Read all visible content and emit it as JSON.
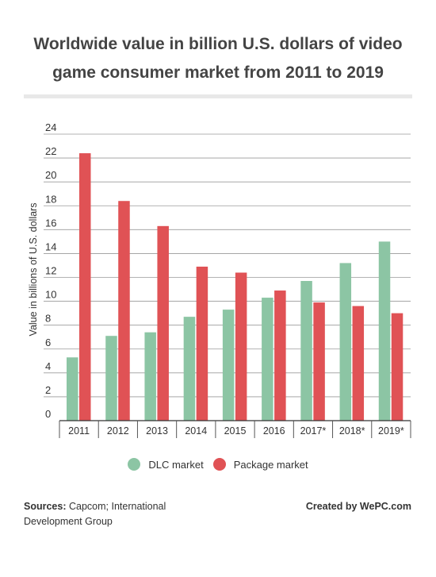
{
  "chart_data": {
    "type": "bar",
    "title": "Worldwide value in billion U.S. dollars of video game consumer market from 2011 to 2019",
    "xlabel": "",
    "ylabel": "Value in billions of U.S. dollars",
    "ylim": [
      0,
      24
    ],
    "yticks": [
      0,
      2,
      4,
      6,
      8,
      10,
      12,
      14,
      16,
      18,
      20,
      22,
      24
    ],
    "grid": true,
    "legend_position": "bottom",
    "categories": [
      "2011",
      "2012",
      "2013",
      "2014",
      "2015",
      "2016",
      "2017*",
      "2018*",
      "2019*"
    ],
    "series": [
      {
        "name": "DLC market",
        "color": "#8cc5a4",
        "values": [
          5.3,
          7.1,
          7.4,
          8.7,
          9.3,
          10.3,
          11.7,
          13.2,
          15.0
        ]
      },
      {
        "name": "Package market",
        "color": "#e05255",
        "values": [
          22.4,
          18.4,
          16.3,
          12.9,
          12.4,
          10.9,
          9.9,
          9.6,
          9.0
        ]
      }
    ]
  },
  "footer": {
    "sources_label": "Sources:",
    "sources_text": "Capcom; International Development Group",
    "credit": "Created by WePC.com"
  }
}
